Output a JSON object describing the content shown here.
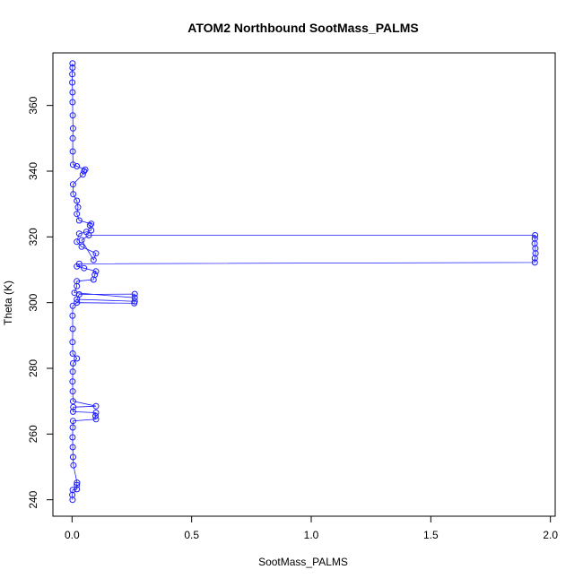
{
  "chart_data": {
    "type": "scatter",
    "title": "ATOM2 Northbound SootMass_PALMS",
    "xlabel": "SootMass_PALMS",
    "ylabel": "Theta (K)",
    "xlim": [
      -0.08,
      2.02
    ],
    "ylim": [
      235,
      376
    ],
    "x_ticks": [
      0.0,
      0.5,
      1.0,
      1.5,
      2.0
    ],
    "x_tick_labels": [
      "0.0",
      "0.5",
      "1.0",
      "1.5",
      "2.0"
    ],
    "y_ticks": [
      240,
      260,
      280,
      300,
      320,
      340,
      360
    ],
    "y_tick_labels": [
      "240",
      "260",
      "280",
      "300",
      "320",
      "340",
      "360"
    ],
    "grid": false,
    "legend": "none",
    "point_style": "open circle",
    "connected": true,
    "colors": {
      "series": "#1a1aff",
      "axes": "#000000"
    },
    "series": [
      {
        "points": [
          [
            0.002,
            240.0
          ],
          [
            0.001,
            241.5
          ],
          [
            0.003,
            243.0
          ],
          [
            0.02,
            243.2
          ],
          [
            0.02,
            244.5
          ],
          [
            0.021,
            245.2
          ],
          [
            0.006,
            250.5
          ],
          [
            0.004,
            253.0
          ],
          [
            0.003,
            256.0
          ],
          [
            0.002,
            259.0
          ],
          [
            0.003,
            262.0
          ],
          [
            0.004,
            264.0
          ],
          [
            0.1,
            264.5
          ],
          [
            0.098,
            265.5
          ],
          [
            0.1,
            266.5
          ],
          [
            0.004,
            266.8
          ],
          [
            0.005,
            268.2
          ],
          [
            0.1,
            268.5
          ],
          [
            0.004,
            270.0
          ],
          [
            0.003,
            273.0
          ],
          [
            0.002,
            276.0
          ],
          [
            0.003,
            279.0
          ],
          [
            0.004,
            281.5
          ],
          [
            0.02,
            283.0
          ],
          [
            0.003,
            284.5
          ],
          [
            0.002,
            288.0
          ],
          [
            0.003,
            292.0
          ],
          [
            0.002,
            296.0
          ],
          [
            0.003,
            299.0
          ],
          [
            0.02,
            300.0
          ],
          [
            0.26,
            299.8
          ],
          [
            0.262,
            300.4
          ],
          [
            0.02,
            301.0
          ],
          [
            0.03,
            302.5
          ],
          [
            0.262,
            302.6
          ],
          [
            0.262,
            301.5
          ],
          [
            0.01,
            303.0
          ],
          [
            0.02,
            305.0
          ],
          [
            0.02,
            306.5
          ],
          [
            0.09,
            307.0
          ],
          [
            0.095,
            308.5
          ],
          [
            0.1,
            309.5
          ],
          [
            0.05,
            310.5
          ],
          [
            0.02,
            311.0
          ],
          [
            0.03,
            311.8
          ],
          [
            1.935,
            312.2
          ],
          [
            1.935,
            313.5
          ],
          [
            1.938,
            315.0
          ],
          [
            1.937,
            316.5
          ],
          [
            1.934,
            318.0
          ],
          [
            1.935,
            319.5
          ],
          [
            1.936,
            320.5
          ],
          [
            0.07,
            320.5
          ],
          [
            0.04,
            319.0
          ],
          [
            0.09,
            313.0
          ],
          [
            0.1,
            315.0
          ],
          [
            0.04,
            317.0
          ],
          [
            0.02,
            318.5
          ],
          [
            0.03,
            321.0
          ],
          [
            0.06,
            321.5
          ],
          [
            0.08,
            322.0
          ],
          [
            0.075,
            323.5
          ],
          [
            0.08,
            324.0
          ],
          [
            0.03,
            325.0
          ],
          [
            0.02,
            327.0
          ],
          [
            0.025,
            329.0
          ],
          [
            0.02,
            331.0
          ],
          [
            0.005,
            333.0
          ],
          [
            0.004,
            336.0
          ],
          [
            0.045,
            339.0
          ],
          [
            0.05,
            340.0
          ],
          [
            0.055,
            340.5
          ],
          [
            0.02,
            341.5
          ],
          [
            0.004,
            342.0
          ],
          [
            0.003,
            346.0
          ],
          [
            0.003,
            350.0
          ],
          [
            0.004,
            353.0
          ],
          [
            0.003,
            357.0
          ],
          [
            0.002,
            361.0
          ],
          [
            0.002,
            364.0
          ],
          [
            0.001,
            367.0
          ],
          [
            0.001,
            369.5
          ],
          [
            0.002,
            371.5
          ],
          [
            0.002,
            372.8
          ]
        ]
      }
    ]
  }
}
